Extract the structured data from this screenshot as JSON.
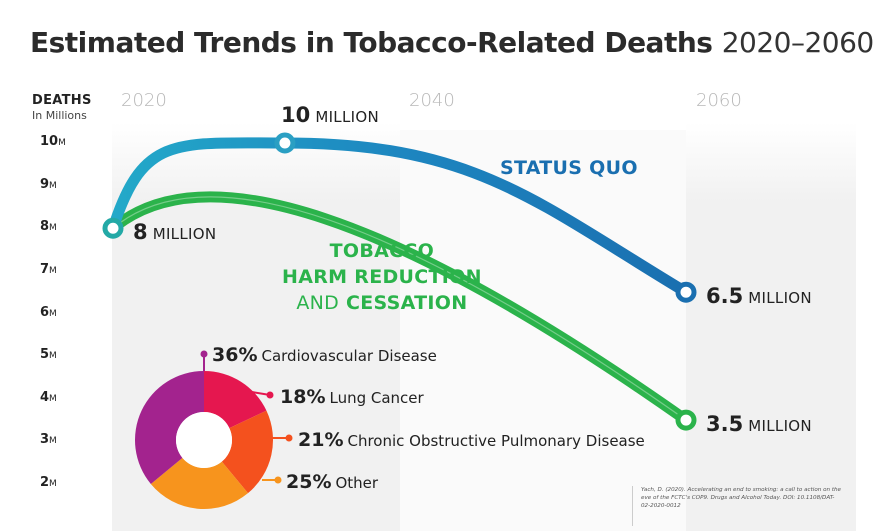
{
  "title": {
    "main": "Estimated Trends in Tobacco-Related Deaths",
    "years": "2020–2060"
  },
  "y_axis": {
    "title": "DEATHS",
    "subtitle": "In Millions",
    "unit_suffix": "M"
  },
  "year_labels": [
    "2020",
    "2040",
    "2060"
  ],
  "annotations": {
    "start": {
      "value": "8",
      "unit": "MILLION"
    },
    "peak": {
      "value": "10",
      "unit": "MILLION"
    },
    "end_status_quo": {
      "value": "6.5",
      "unit": "MILLION"
    },
    "end_harm_reduction": {
      "value": "3.5",
      "unit": "MILLION"
    }
  },
  "series_labels": {
    "status_quo": "STATUS QUO",
    "harm_reduction_line1": "TOBACCO",
    "harm_reduction_line2": "HARM REDUCTION",
    "harm_reduction_and": "AND",
    "harm_reduction_cessation": "CESSATION"
  },
  "pie_items": [
    {
      "pct": "36%",
      "label": "Cardiovascular Disease"
    },
    {
      "pct": "18%",
      "label": "Lung Cancer"
    },
    {
      "pct": "21%",
      "label": "Chronic Obstructive Pulmonary Disease"
    },
    {
      "pct": "25%",
      "label": "Other"
    }
  ],
  "citation": "Yach, D. (2020). Accelerating an end to smoking: a call to action on the eve of the FCTC's COP9. Drugs and Alcohol Today. DOI: 10.1108/DAT-02-2020-0012",
  "colors": {
    "status_quo": "#1a6fb0",
    "harm_reduction": "#2bb34b",
    "pie": [
      "#a3238e",
      "#e5174f",
      "#f4511e",
      "#f7941d"
    ]
  },
  "chart_data": [
    {
      "type": "line",
      "title": "Estimated Trends in Tobacco-Related Deaths 2020–2060",
      "ylabel": "DEATHS In Millions",
      "ylim": [
        2,
        10
      ],
      "yticks": [
        2,
        3,
        4,
        5,
        6,
        7,
        8,
        9,
        10
      ],
      "x_ticks": [
        2020,
        2040,
        2060
      ],
      "series": [
        {
          "name": "STATUS QUO",
          "x": [
            2020,
            2032,
            2060
          ],
          "y": [
            8,
            10,
            6.5
          ]
        },
        {
          "name": "TOBACCO HARM REDUCTION AND CESSATION",
          "x": [
            2020,
            2060
          ],
          "y": [
            8,
            3.5
          ]
        }
      ]
    },
    {
      "type": "pie",
      "categories": [
        "Cardiovascular Disease",
        "Lung Cancer",
        "Chronic Obstructive Pulmonary Disease",
        "Other"
      ],
      "values": [
        36,
        18,
        21,
        25
      ]
    }
  ]
}
